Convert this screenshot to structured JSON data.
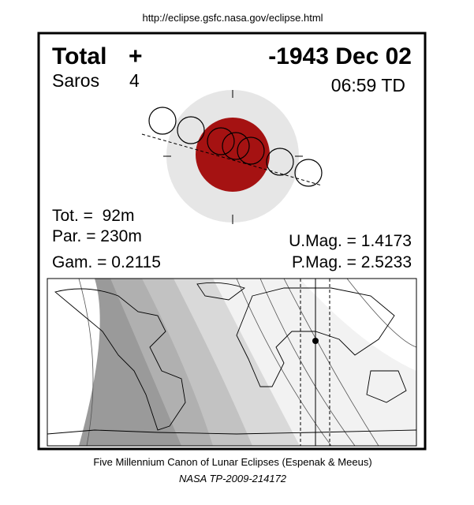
{
  "header": {
    "url": "http://eclipse.gsfc.nasa.gov/eclipse.html"
  },
  "eclipse": {
    "type": "Total",
    "marker": "+",
    "date": "-1943 Dec 02",
    "saros_label": "Saros",
    "saros_number": "4",
    "time": "06:59 TD"
  },
  "stats": {
    "total_duration": "Tot. =  92m",
    "partial_duration": "Par. = 230m",
    "gamma": "Gam. = 0.2115",
    "umbral_magnitude": "U.Mag. = 1.4173",
    "penumbral_magnitude": "P.Mag. = 2.5233"
  },
  "footer": {
    "credit": "Five Millennium Canon of Lunar Eclipses (Espenak & Meeus)",
    "reference": "NASA TP-2009-214172"
  }
}
